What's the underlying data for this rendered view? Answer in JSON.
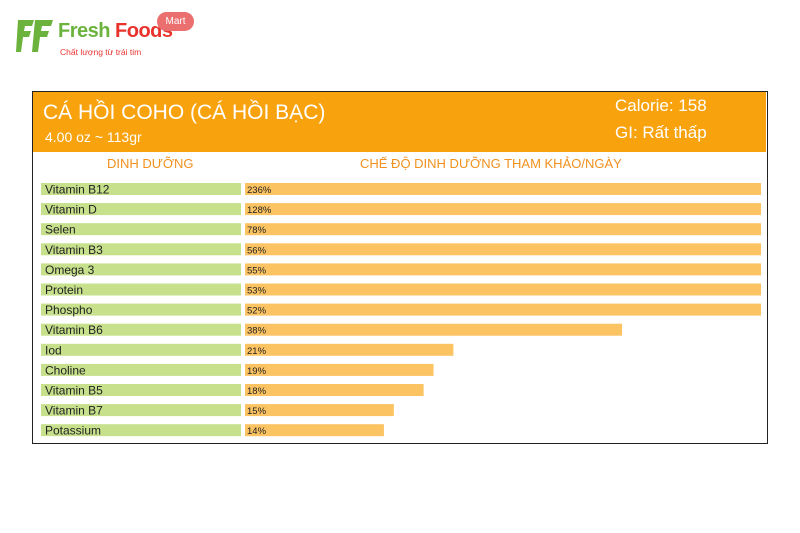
{
  "logo": {
    "brand_part1": "Fresh",
    "brand_part2": "Foods",
    "badge": "Mart",
    "tagline": "Chất lượng từ trái tim",
    "green": "#6cb33e",
    "red": "#e8332d"
  },
  "header": {
    "title": "CÁ HỒI COHO (CÁ HỒI BẠC)",
    "subtitle": "4.00 oz ~ 113gr",
    "calorie": "Calorie: 158",
    "gi": "GI: Rất thấp",
    "color": "#f8a30e"
  },
  "columns": {
    "left": "DINH DƯỠNG",
    "right": "CHẾ ĐỘ DINH DƯỠNG THAM KHẢO/NGÀY"
  },
  "chart_data": {
    "type": "bar",
    "orientation": "horizontal",
    "categories": [
      "Vitamin B12",
      "Vitamin D",
      "Selen",
      "Vitamin B3",
      "Omega 3",
      "Protein",
      "Phospho",
      "Vitamin B6",
      "Iod",
      "Choline",
      "Vitamin B5",
      "Vitamin B7",
      "Potassium"
    ],
    "value_labels": [
      "236%",
      "128%",
      "78%",
      "56%",
      "55%",
      "53%",
      "52%",
      "38%",
      "21%",
      "19%",
      "18%",
      "15%",
      "14%"
    ],
    "values": [
      236,
      128,
      78,
      56,
      55,
      53,
      52,
      38,
      21,
      19,
      18,
      15,
      14
    ],
    "xlim": [
      0,
      52
    ],
    "label_bar_color": "#c6e08c",
    "value_bar_color": "#fcc363"
  }
}
